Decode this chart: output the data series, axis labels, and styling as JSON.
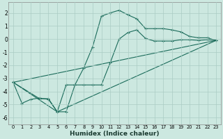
{
  "xlabel": "Humidex (Indice chaleur)",
  "background_color": "#cce8e0",
  "line_color": "#1a6b5a",
  "grid_color": "#aaccC4",
  "xlim": [
    -0.5,
    23.5
  ],
  "ylim": [
    -6.5,
    2.8
  ],
  "xticks": [
    0,
    1,
    2,
    3,
    4,
    5,
    6,
    7,
    8,
    9,
    10,
    11,
    12,
    13,
    14,
    15,
    16,
    17,
    18,
    19,
    20,
    21,
    22,
    23
  ],
  "yticks": [
    -6,
    -5,
    -4,
    -3,
    -2,
    -1,
    0,
    1,
    2
  ],
  "line1_x": [
    0,
    1,
    2,
    3,
    4,
    5,
    6,
    7,
    8,
    9,
    10,
    11,
    12,
    13,
    14,
    15,
    16,
    17,
    18,
    19,
    20,
    21,
    22,
    23
  ],
  "line1_y": [
    -3.3,
    -4.9,
    -4.6,
    -4.5,
    -4.6,
    -5.55,
    -5.55,
    -3.5,
    -2.2,
    -0.6,
    1.75,
    2.0,
    2.2,
    1.85,
    1.55,
    0.8,
    0.8,
    0.8,
    0.7,
    0.55,
    0.2,
    0.1,
    0.1,
    -0.1
  ],
  "line2_x": [
    0,
    3,
    4,
    5,
    6,
    7,
    8,
    9,
    10,
    11,
    12,
    13,
    14,
    15,
    16,
    17,
    18,
    19,
    20,
    21,
    22,
    23
  ],
  "line2_y": [
    -3.3,
    -4.55,
    -4.55,
    -5.55,
    -3.5,
    -3.5,
    -3.5,
    -3.5,
    -3.5,
    -1.8,
    0.0,
    0.5,
    0.7,
    0.05,
    -0.15,
    -0.15,
    -0.15,
    -0.05,
    -0.05,
    -0.1,
    -0.05,
    -0.1
  ],
  "line3_x": [
    0,
    23
  ],
  "line3_y": [
    -3.3,
    -0.1
  ],
  "line4_x": [
    0,
    5,
    23
  ],
  "line4_y": [
    -3.3,
    -5.55,
    -0.1
  ]
}
